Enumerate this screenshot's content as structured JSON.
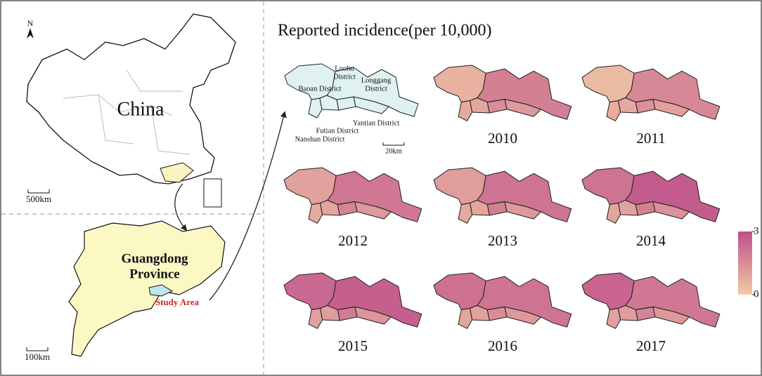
{
  "left_panel": {
    "north": "N",
    "china_label": "China",
    "china_scale": "500km",
    "province_label": [
      "Guangdong",
      "Province"
    ],
    "study_area": "Study Area",
    "province_scale": "100km"
  },
  "title": "Reported incidence(per 10,000)",
  "reference_map": {
    "labels": {
      "baoan": "Baoan District",
      "luohu": [
        "Luohu",
        "District"
      ],
      "longgang": [
        "Longgang",
        "District"
      ],
      "yantian": "Yantian District",
      "futian": "Futian District",
      "nanshan": "Nanshan District"
    },
    "scale": "20km"
  },
  "districts": [
    "Baoan",
    "Nanshan",
    "Futian",
    "Luohu",
    "Longgang",
    "Yantian"
  ],
  "legend": {
    "min": 0,
    "max": 3,
    "low_color": "#f2caa6",
    "high_color": "#bf4f8a"
  },
  "years": [
    {
      "year": "2010",
      "values": [
        0.6,
        0.8,
        0.9,
        1.5,
        1.8,
        1.2
      ]
    },
    {
      "year": "2011",
      "values": [
        0.4,
        0.7,
        0.8,
        1.4,
        1.6,
        1.0
      ]
    },
    {
      "year": "2012",
      "values": [
        1.0,
        0.8,
        0.9,
        1.7,
        2.0,
        1.2
      ]
    },
    {
      "year": "2013",
      "values": [
        1.1,
        0.8,
        0.9,
        1.8,
        2.1,
        1.2
      ]
    },
    {
      "year": "2014",
      "values": [
        2.1,
        0.9,
        1.0,
        1.8,
        2.7,
        1.4
      ]
    },
    {
      "year": "2015",
      "values": [
        2.4,
        1.0,
        1.1,
        1.9,
        2.6,
        1.3
      ]
    },
    {
      "year": "2016",
      "values": [
        2.2,
        0.9,
        1.0,
        1.5,
        2.1,
        1.2
      ]
    },
    {
      "year": "2017",
      "values": [
        2.5,
        1.0,
        1.1,
        1.7,
        2.0,
        1.2
      ]
    }
  ]
}
